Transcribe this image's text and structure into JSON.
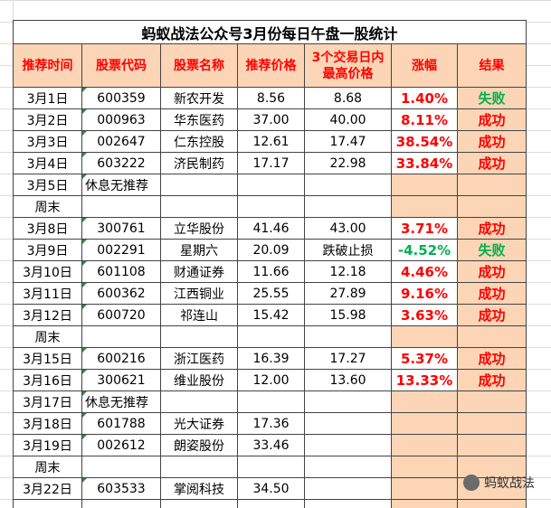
{
  "title": "蚂蚁战法公众号3月份每日午盘一股统计",
  "header": [
    "推荐时间",
    "股票代码",
    "股票名称",
    "推荐价格",
    "3个交易日内最高价格",
    "涨幅",
    "结果"
  ],
  "rows": [
    [
      "3月1日",
      "600359",
      "新农开发",
      "8.56",
      "8.68",
      "1.40%",
      "失败"
    ],
    [
      "3月2日",
      "000963",
      "华东医药",
      "37.00",
      "40.00",
      "8.11%",
      "成功"
    ],
    [
      "3月3日",
      "002647",
      "仁东控股",
      "12.61",
      "17.47",
      "38.54%",
      "成功"
    ],
    [
      "3月4日",
      "603222",
      "济民制药",
      "17.17",
      "22.98",
      "33.84%",
      "成功"
    ],
    [
      "3月5日",
      "休息无推荐",
      null,
      null,
      null,
      null,
      null
    ],
    [
      "周末",
      null,
      null,
      null,
      null,
      null,
      null
    ],
    [
      "3月8日",
      "300761",
      "立华股份",
      "41.46",
      "43.00",
      "3.71%",
      "成功"
    ],
    [
      "3月9日",
      "002291",
      "星期六",
      "20.09",
      "跌破止损",
      "-4.52%",
      "失败"
    ],
    [
      "3月10日",
      "601108",
      "财通证券",
      "11.66",
      "12.18",
      "4.46%",
      "成功"
    ],
    [
      "3月11日",
      "600362",
      "江西铜业",
      "25.55",
      "27.89",
      "9.16%",
      "成功"
    ],
    [
      "3月12日",
      "600720",
      "祁连山",
      "15.42",
      "15.98",
      "3.63%",
      "成功"
    ],
    [
      "周末",
      null,
      null,
      null,
      null,
      null,
      null
    ],
    [
      "3月15日",
      "600216",
      "浙江医药",
      "16.39",
      "17.27",
      "5.37%",
      "成功"
    ],
    [
      "3月16日",
      "300621",
      "维业股份",
      "12.00",
      "13.60",
      "13.33%",
      "成功"
    ],
    [
      "3月17日",
      "休息无推荐",
      null,
      null,
      null,
      null,
      null
    ],
    [
      "3月18日",
      "601788",
      "光大证券",
      "17.36",
      null,
      null,
      null
    ],
    [
      "3月19日",
      "002612",
      "朗姿股份",
      "33.46",
      null,
      null,
      null
    ],
    [
      "周末",
      null,
      null,
      null,
      null,
      null,
      null
    ],
    [
      "3月22日",
      "603533",
      "掌阅科技",
      "34.50",
      null,
      null,
      null
    ]
  ],
  "watermark": "蚂蚁战法"
}
